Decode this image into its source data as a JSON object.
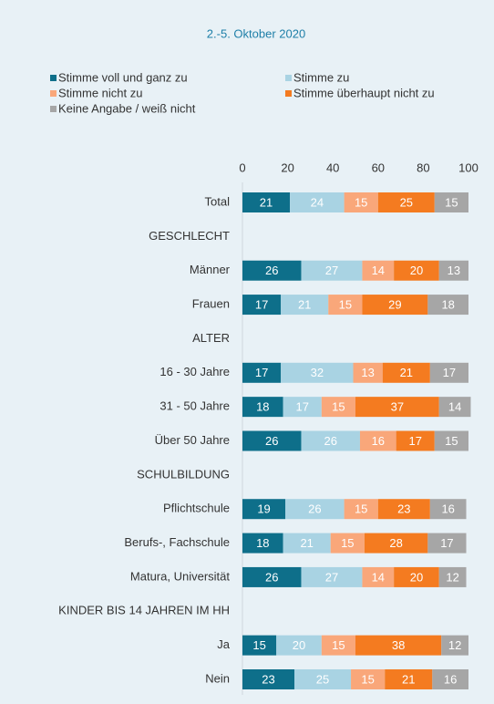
{
  "chart_data": {
    "type": "stacked-bar-horizontal",
    "title": "2.-5. Oktober 2020",
    "categories": [
      "Total",
      "GESCHLECHT",
      "Männer",
      "Frauen",
      "ALTER",
      "16 - 30 Jahre",
      "31 - 50 Jahre",
      "Über 50 Jahre",
      "SCHULBILDUNG",
      "Pflichtschule",
      "Berufs-, Fachschule",
      "Matura, Universität",
      "KINDER BIS 14 JAHREN IM HH",
      "Ja",
      "Nein"
    ],
    "series": [
      {
        "name": "Stimme voll und ganz zu",
        "color": "#0e6f8a",
        "values": [
          21,
          null,
          26,
          17,
          null,
          17,
          18,
          26,
          null,
          19,
          18,
          26,
          null,
          15,
          23
        ]
      },
      {
        "name": "Stimme zu",
        "color": "#a9d3e3",
        "values": [
          24,
          null,
          27,
          21,
          null,
          32,
          17,
          26,
          null,
          26,
          21,
          27,
          null,
          20,
          25
        ]
      },
      {
        "name": "Stimme nicht zu",
        "color": "#f9a77a",
        "values": [
          15,
          null,
          14,
          15,
          null,
          13,
          15,
          16,
          null,
          15,
          15,
          14,
          null,
          15,
          15
        ]
      },
      {
        "name": "Stimme überhaupt nicht zu",
        "color": "#f47b20",
        "values": [
          25,
          null,
          20,
          29,
          null,
          21,
          37,
          17,
          null,
          23,
          28,
          20,
          null,
          38,
          21
        ]
      },
      {
        "name": "Keine Angabe / weiß nicht",
        "color": "#a6a6a6",
        "values": [
          15,
          null,
          13,
          18,
          null,
          17,
          14,
          15,
          null,
          16,
          17,
          12,
          null,
          12,
          16
        ]
      }
    ],
    "xlim": [
      0,
      100
    ],
    "xticks": [
      0,
      20,
      40,
      60,
      80,
      100
    ]
  }
}
